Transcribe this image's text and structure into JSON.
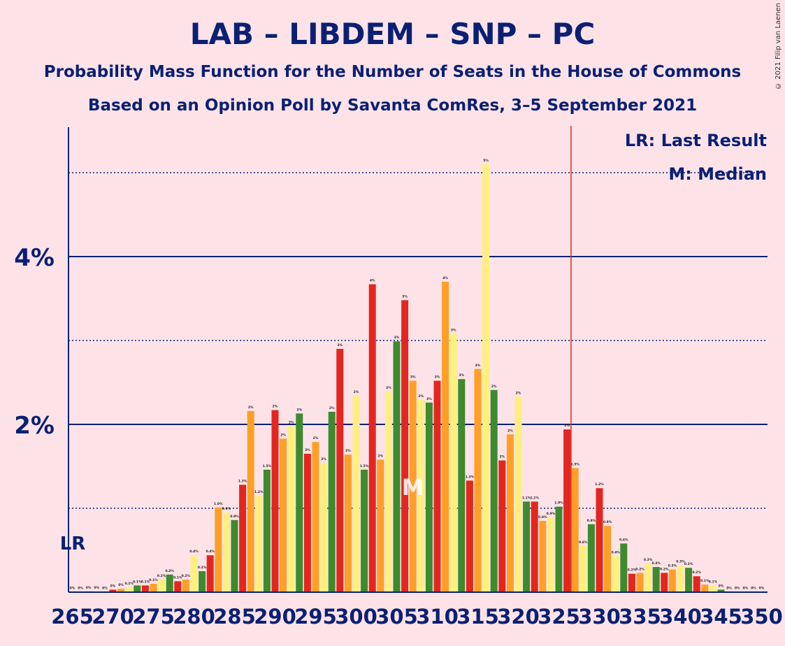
{
  "header": {
    "title": "LAB – LIBDEM – SNP – PC",
    "subtitle1": "Probability Mass Function for the Number of Seats in the House of Commons",
    "subtitle2": "Based on an Opinion Poll by Savanta ComRes, 3–5 September 2021",
    "copyright": "© 2021 Filip van Laenen"
  },
  "colors": {
    "background": "#fde3e8",
    "axis": "#0b2073",
    "bar_cycle": [
      "#ffef80",
      "#3d8a2f",
      "#e3261f",
      "#ff9f28"
    ],
    "last_result_line": "#e3261f"
  },
  "chart_data": {
    "type": "bar",
    "xlabel": "",
    "ylabel": "",
    "x_start": 265,
    "x_end": 350,
    "x_ticks": [
      265,
      270,
      275,
      280,
      285,
      290,
      295,
      300,
      305,
      310,
      315,
      320,
      325,
      330,
      335,
      340,
      345,
      350
    ],
    "y_ticks": [
      {
        "value": 2,
        "label": "2%"
      },
      {
        "value": 4,
        "label": "4%"
      }
    ],
    "ylim": [
      0,
      5.6
    ],
    "dotted_gridlines": [
      1,
      3,
      5
    ],
    "values": [
      0.0,
      0.0,
      0.01,
      0.01,
      0.0,
      0.03,
      0.04,
      0.06,
      0.08,
      0.08,
      0.1,
      0.15,
      0.21,
      0.13,
      0.15,
      0.44,
      0.25,
      0.44,
      1.01,
      0.95,
      0.86,
      1.28,
      2.16,
      1.15,
      1.46,
      2.17,
      1.83,
      1.98,
      2.13,
      1.65,
      1.79,
      1.54,
      2.15,
      2.9,
      1.64,
      2.34,
      1.46,
      3.67,
      1.58,
      2.39,
      2.99,
      3.48,
      2.52,
      2.29,
      2.26,
      2.52,
      3.7,
      3.08,
      2.54,
      1.33,
      2.66,
      5.1,
      2.41,
      1.57,
      1.88,
      2.33,
      1.08,
      1.08,
      0.85,
      0.89,
      1.02,
      1.94,
      1.48,
      0.55,
      0.81,
      1.24,
      0.79,
      0.43,
      0.58,
      0.22,
      0.23,
      0.34,
      0.3,
      0.23,
      0.27,
      0.32,
      0.29,
      0.19,
      0.09,
      0.08,
      0.03,
      0.0,
      0.0,
      0.0,
      0.0,
      0.0
    ],
    "labels": [
      "0%",
      "0%",
      "0%",
      "0%",
      "0%",
      "0%",
      "0%",
      "0.1%",
      "0.1%",
      "0.1%",
      "0.1%",
      "0.2%",
      "0.2%",
      "0.1%",
      "0.2%",
      "0.4%",
      "0.2%",
      "0.4%",
      "1.0%",
      "0.9%",
      "0.9%",
      "1.3%",
      "2%",
      "1.2%",
      "1.5%",
      "2%",
      "2%",
      "2%",
      "2%",
      "2%",
      "2%",
      "2%",
      "2%",
      "3%",
      "2%",
      "2%",
      "1.5%",
      "4%",
      "2%",
      "2%",
      "3%",
      "3%",
      "3%",
      "2%",
      "2%",
      "3%",
      "4%",
      "3%",
      "3%",
      "1.3%",
      "3%",
      "5%",
      "2%",
      "2%",
      "2%",
      "2%",
      "1.1%",
      "1.1%",
      "0.8%",
      "0.9%",
      "1.0%",
      "2%",
      "1.5%",
      "0.6%",
      "0.8%",
      "1.2%",
      "0.8%",
      "0.4%",
      "0.6%",
      "0.2%",
      "0.2%",
      "0.3%",
      "0.3%",
      "0.2%",
      "0.3%",
      "0.3%",
      "0.3%",
      "0.2%",
      "0.1%",
      "0.1%",
      "0%",
      "0%",
      "0%",
      "0%",
      "0%",
      "0%"
    ],
    "last_result": {
      "seat": 265,
      "label": "LR"
    },
    "median": {
      "seat": 307,
      "label": "M"
    },
    "majority_line_seat": 326,
    "legend": {
      "lr": "LR: Last Result",
      "m": "M: Median",
      "position": "top-right"
    }
  }
}
